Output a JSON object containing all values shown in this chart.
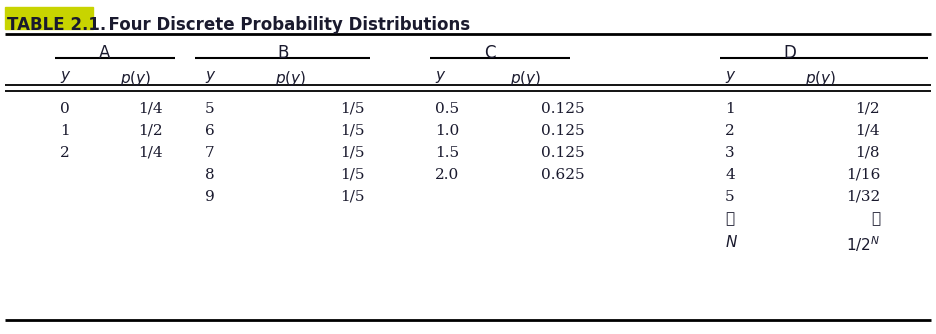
{
  "title_prefix": "TABLE 2.1.",
  "title_suffix": "  Four Discrete Probability Distributions",
  "title_prefix_bg": "#c8d400",
  "sections": [
    "A",
    "B",
    "C",
    "D"
  ],
  "data_A": [
    [
      "0",
      "1/4"
    ],
    [
      "1",
      "1/2"
    ],
    [
      "2",
      "1/4"
    ]
  ],
  "data_B": [
    [
      "5",
      "1/5"
    ],
    [
      "6",
      "1/5"
    ],
    [
      "7",
      "1/5"
    ],
    [
      "8",
      "1/5"
    ],
    [
      "9",
      "1/5"
    ]
  ],
  "data_C": [
    [
      "0.5",
      "0.125"
    ],
    [
      "1.0",
      "0.125"
    ],
    [
      "1.5",
      "0.125"
    ],
    [
      "2.0",
      "0.625"
    ]
  ],
  "data_D_y": [
    "1",
    "2",
    "3",
    "4",
    "5",
    ":",
    "N"
  ],
  "data_D_py": [
    "1/2",
    "1/4",
    "1/8",
    "1/16",
    "1/32",
    ":",
    "1/2^N"
  ],
  "bg_color": "#ffffff",
  "text_color": "#1a1a2e",
  "line_color": "#000000",
  "font_size": 11,
  "title_font_size": 12
}
